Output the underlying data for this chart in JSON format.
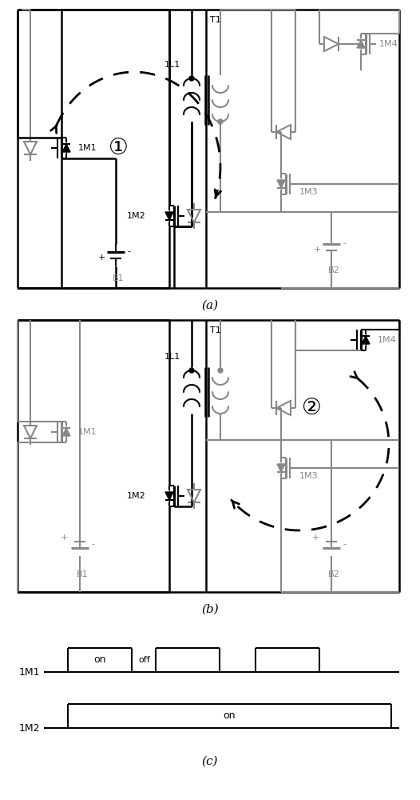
{
  "fig_width": 5.26,
  "fig_height": 10.0,
  "dpi": 100,
  "bg_color": "#ffffff",
  "black": "#000000",
  "gray": "#888888",
  "label_a": "(a)",
  "label_b": "(b)",
  "label_c": "(c)"
}
